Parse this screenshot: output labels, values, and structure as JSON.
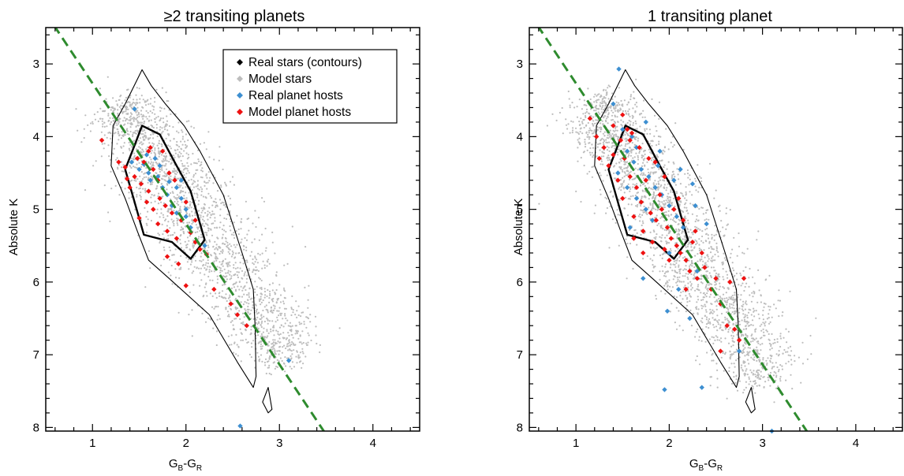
{
  "colors": {
    "real_contours": "#000000",
    "model_stars": "#bdbdbd",
    "real_hosts": "#3d8fd1",
    "model_hosts": "#ee1111",
    "fit_line": "#2e8b2e"
  },
  "legend": {
    "position": "top-right of left panel",
    "items": [
      {
        "label": "Real stars (contours)",
        "color": "#000000"
      },
      {
        "label": "Model stars",
        "color": "#bdbdbd"
      },
      {
        "label": "Real planet hosts",
        "color": "#3d8fd1"
      },
      {
        "label": "Model planet hosts",
        "color": "#ee1111"
      }
    ]
  },
  "chart_data": [
    {
      "type": "scatter",
      "title": "≥2 transiting planets",
      "xlabel_main": "G",
      "xlabel_sub1": "B",
      "xlabel_mid": "-G",
      "xlabel_sub2": "R",
      "ylabel": "Absolute K",
      "xlim": [
        0.5,
        4.5
      ],
      "ylim": [
        8.05,
        2.5
      ],
      "y_inverted": true,
      "xticks": [
        1,
        2,
        3,
        4
      ],
      "yticks": [
        3,
        4,
        5,
        6,
        7,
        8
      ],
      "fit_line": {
        "style": "dashed",
        "points": [
          [
            0.5,
            2.3
          ],
          [
            3.5,
            8.1
          ]
        ]
      },
      "model_stars_cloud": {
        "center_line": [
          [
            1.3,
            3.55
          ],
          [
            3.1,
            7.1
          ]
        ],
        "approx_count": 2200
      },
      "contours": [
        {
          "level": "inner",
          "points": [
            [
              1.53,
              3.85
            ],
            [
              1.72,
              3.97
            ],
            [
              1.9,
              4.4
            ],
            [
              2.05,
              4.75
            ],
            [
              2.2,
              5.42
            ],
            [
              2.05,
              5.68
            ],
            [
              1.85,
              5.45
            ],
            [
              1.55,
              5.35
            ],
            [
              1.45,
              4.9
            ],
            [
              1.35,
              4.45
            ],
            [
              1.45,
              4.12
            ]
          ]
        },
        {
          "level": "outer",
          "points": [
            [
              1.53,
              3.08
            ],
            [
              1.63,
              3.3
            ],
            [
              1.78,
              3.55
            ],
            [
              1.98,
              3.85
            ],
            [
              2.15,
              4.2
            ],
            [
              2.4,
              4.8
            ],
            [
              2.6,
              5.6
            ],
            [
              2.72,
              6.1
            ],
            [
              2.74,
              6.6
            ],
            [
              2.75,
              7.3
            ],
            [
              2.72,
              7.45
            ],
            [
              2.55,
              7.1
            ],
            [
              2.25,
              6.45
            ],
            [
              1.82,
              5.95
            ],
            [
              1.6,
              5.7
            ],
            [
              1.48,
              5.3
            ],
            [
              1.35,
              4.85
            ],
            [
              1.2,
              4.4
            ],
            [
              1.22,
              3.85
            ],
            [
              1.35,
              3.55
            ]
          ]
        },
        {
          "level": "island",
          "points": [
            [
              2.88,
              7.45
            ],
            [
              2.92,
              7.75
            ],
            [
              2.88,
              7.8
            ],
            [
              2.82,
              7.65
            ]
          ]
        }
      ],
      "real_hosts": [
        [
          1.45,
          3.62
        ],
        [
          1.42,
          4.35
        ],
        [
          1.5,
          4.45
        ],
        [
          1.55,
          4.38
        ],
        [
          1.6,
          4.5
        ],
        [
          1.62,
          4.6
        ],
        [
          1.7,
          4.55
        ],
        [
          1.75,
          4.7
        ],
        [
          1.8,
          4.8
        ],
        [
          1.85,
          4.95
        ],
        [
          1.9,
          5.05
        ],
        [
          1.95,
          4.85
        ],
        [
          2.0,
          5.1
        ],
        [
          1.72,
          4.4
        ],
        [
          1.58,
          4.25
        ],
        [
          1.82,
          4.62
        ],
        [
          2.05,
          5.25
        ],
        [
          1.67,
          4.3
        ],
        [
          1.9,
          4.7
        ],
        [
          2.2,
          5.5
        ],
        [
          2.0,
          5.0
        ],
        [
          2.58,
          7.98
        ],
        [
          3.1,
          7.08
        ],
        [
          1.95,
          4.6
        ]
      ],
      "model_hosts": [
        [
          1.1,
          4.05
        ],
        [
          1.28,
          4.35
        ],
        [
          1.35,
          4.42
        ],
        [
          1.45,
          4.55
        ],
        [
          1.52,
          4.65
        ],
        [
          1.6,
          4.75
        ],
        [
          1.65,
          4.45
        ],
        [
          1.72,
          4.85
        ],
        [
          1.78,
          4.95
        ],
        [
          1.85,
          5.05
        ],
        [
          1.88,
          4.6
        ],
        [
          1.95,
          5.15
        ],
        [
          2.05,
          5.32
        ],
        [
          2.1,
          5.45
        ],
        [
          2.15,
          5.55
        ],
        [
          1.55,
          4.35
        ],
        [
          1.62,
          4.15
        ],
        [
          1.7,
          5.2
        ],
        [
          1.8,
          5.3
        ],
        [
          1.9,
          5.4
        ],
        [
          1.58,
          4.9
        ],
        [
          1.48,
          4.3
        ],
        [
          1.4,
          4.7
        ],
        [
          1.75,
          4.2
        ],
        [
          2.0,
          4.9
        ],
        [
          2.22,
          5.62
        ],
        [
          1.8,
          5.65
        ],
        [
          2.0,
          6.05
        ],
        [
          2.3,
          6.1
        ],
        [
          2.48,
          6.3
        ],
        [
          2.55,
          6.45
        ],
        [
          2.65,
          6.6
        ],
        [
          1.65,
          5.0
        ],
        [
          1.5,
          5.12
        ],
        [
          1.82,
          4.5
        ],
        [
          2.1,
          5.15
        ],
        [
          1.92,
          5.75
        ],
        [
          1.6,
          4.2
        ],
        [
          1.37,
          4.58
        ],
        [
          1.7,
          4.6
        ]
      ]
    },
    {
      "type": "scatter",
      "title": "1 transiting planet",
      "xlabel_main": "G",
      "xlabel_sub1": "B",
      "xlabel_mid": "-G",
      "xlabel_sub2": "R",
      "ylabel": "Absolute K",
      "xlim": [
        0.5,
        4.5
      ],
      "ylim": [
        8.05,
        2.5
      ],
      "y_inverted": true,
      "xticks": [
        1,
        2,
        3,
        4
      ],
      "yticks": [
        3,
        4,
        5,
        6,
        7,
        8
      ],
      "fit_line": {
        "style": "dashed",
        "points": [
          [
            0.5,
            2.3
          ],
          [
            3.5,
            8.1
          ]
        ]
      },
      "model_stars_cloud": {
        "center_line": [
          [
            1.2,
            3.5
          ],
          [
            3.1,
            7.4
          ]
        ],
        "approx_count": 2400
      },
      "contours": [
        {
          "level": "inner",
          "points": [
            [
              1.53,
              3.85
            ],
            [
              1.72,
              3.97
            ],
            [
              1.9,
              4.4
            ],
            [
              2.05,
              4.75
            ],
            [
              2.2,
              5.42
            ],
            [
              2.05,
              5.68
            ],
            [
              1.85,
              5.45
            ],
            [
              1.55,
              5.35
            ],
            [
              1.45,
              4.9
            ],
            [
              1.35,
              4.45
            ],
            [
              1.45,
              4.12
            ]
          ]
        },
        {
          "level": "outer",
          "points": [
            [
              1.53,
              3.08
            ],
            [
              1.63,
              3.3
            ],
            [
              1.78,
              3.55
            ],
            [
              1.98,
              3.85
            ],
            [
              2.15,
              4.2
            ],
            [
              2.4,
              4.8
            ],
            [
              2.6,
              5.6
            ],
            [
              2.72,
              6.1
            ],
            [
              2.74,
              6.6
            ],
            [
              2.75,
              7.3
            ],
            [
              2.72,
              7.45
            ],
            [
              2.55,
              7.1
            ],
            [
              2.25,
              6.45
            ],
            [
              1.82,
              5.95
            ],
            [
              1.6,
              5.7
            ],
            [
              1.48,
              5.3
            ],
            [
              1.35,
              4.85
            ],
            [
              1.2,
              4.4
            ],
            [
              1.22,
              3.85
            ],
            [
              1.35,
              3.55
            ]
          ]
        },
        {
          "level": "island",
          "points": [
            [
              2.88,
              7.45
            ],
            [
              2.92,
              7.75
            ],
            [
              2.88,
              7.8
            ],
            [
              2.82,
              7.65
            ]
          ]
        }
      ],
      "real_hosts": [
        [
          1.46,
          3.07
        ],
        [
          1.4,
          3.55
        ],
        [
          1.5,
          3.9
        ],
        [
          1.6,
          4.0
        ],
        [
          1.55,
          4.2
        ],
        [
          1.62,
          4.35
        ],
        [
          1.7,
          4.45
        ],
        [
          1.78,
          4.55
        ],
        [
          1.85,
          4.7
        ],
        [
          1.92,
          4.8
        ],
        [
          2.0,
          4.95
        ],
        [
          2.08,
          5.1
        ],
        [
          1.45,
          4.5
        ],
        [
          1.55,
          4.7
        ],
        [
          1.65,
          4.85
        ],
        [
          1.75,
          5.0
        ],
        [
          1.82,
          5.15
        ],
        [
          2.12,
          4.45
        ],
        [
          2.25,
          4.65
        ],
        [
          2.28,
          4.95
        ],
        [
          1.75,
          3.8
        ],
        [
          1.9,
          4.2
        ],
        [
          2.4,
          5.2
        ],
        [
          1.98,
          6.4
        ],
        [
          2.1,
          6.1
        ],
        [
          1.72,
          5.95
        ],
        [
          2.22,
          6.5
        ],
        [
          2.0,
          5.6
        ],
        [
          1.95,
          7.48
        ],
        [
          2.35,
          7.45
        ],
        [
          3.1,
          8.05
        ],
        [
          2.75,
          6.95
        ],
        [
          2.3,
          5.85
        ],
        [
          1.65,
          4.15
        ],
        [
          1.58,
          5.25
        ],
        [
          1.88,
          4.4
        ],
        [
          2.05,
          4.6
        ],
        [
          2.15,
          5.25
        ]
      ],
      "model_hosts": [
        [
          1.15,
          3.75
        ],
        [
          1.22,
          4.0
        ],
        [
          1.3,
          4.15
        ],
        [
          1.4,
          3.85
        ],
        [
          1.48,
          4.05
        ],
        [
          1.52,
          4.3
        ],
        [
          1.58,
          4.55
        ],
        [
          1.65,
          4.7
        ],
        [
          1.7,
          4.9
        ],
        [
          1.75,
          4.6
        ],
        [
          1.8,
          5.05
        ],
        [
          1.86,
          5.15
        ],
        [
          1.92,
          5.0
        ],
        [
          1.98,
          5.25
        ],
        [
          2.02,
          5.4
        ],
        [
          2.08,
          5.5
        ],
        [
          2.12,
          5.6
        ],
        [
          2.18,
          5.7
        ],
        [
          2.22,
          5.85
        ],
        [
          2.3,
          5.95
        ],
        [
          1.6,
          3.95
        ],
        [
          1.45,
          4.6
        ],
        [
          1.35,
          4.4
        ],
        [
          1.5,
          4.85
        ],
        [
          1.62,
          5.1
        ],
        [
          1.72,
          5.3
        ],
        [
          1.85,
          4.35
        ],
        [
          1.95,
          4.55
        ],
        [
          2.05,
          5.0
        ],
        [
          2.15,
          5.15
        ],
        [
          2.25,
          5.45
        ],
        [
          2.35,
          5.6
        ],
        [
          2.45,
          6.1
        ],
        [
          2.55,
          6.3
        ],
        [
          2.62,
          6.6
        ],
        [
          2.7,
          6.65
        ],
        [
          2.75,
          6.8
        ],
        [
          2.55,
          6.95
        ],
        [
          2.65,
          6.0
        ],
        [
          2.8,
          5.95
        ],
        [
          1.55,
          3.9
        ],
        [
          1.68,
          4.15
        ],
        [
          1.78,
          4.3
        ],
        [
          1.9,
          4.8
        ],
        [
          2.0,
          5.7
        ],
        [
          2.1,
          4.85
        ],
        [
          1.62,
          5.4
        ],
        [
          1.4,
          4.25
        ],
        [
          1.25,
          4.3
        ],
        [
          1.82,
          5.45
        ],
        [
          1.95,
          5.55
        ],
        [
          2.28,
          5.3
        ],
        [
          1.5,
          3.7
        ],
        [
          1.58,
          4.05
        ],
        [
          2.18,
          6.1
        ],
        [
          2.38,
          5.8
        ],
        [
          2.5,
          5.95
        ],
        [
          1.72,
          5.6
        ]
      ]
    }
  ]
}
